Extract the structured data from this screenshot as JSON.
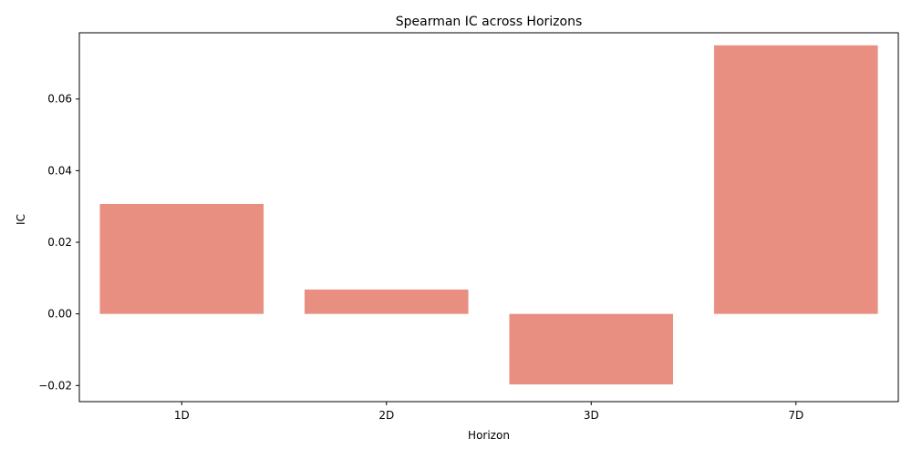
{
  "chart_data": {
    "type": "bar",
    "title": "Spearman IC across Horizons",
    "xlabel": "Horizon",
    "ylabel": "IC",
    "categories": [
      "1D",
      "2D",
      "3D",
      "7D"
    ],
    "values": [
      0.0307,
      0.0068,
      -0.0197,
      0.075
    ],
    "ylim": [
      -0.0245,
      0.0785
    ],
    "yticks": [
      -0.02,
      0.0,
      0.02,
      0.04,
      0.06
    ],
    "ytick_labels": [
      "−0.02",
      "0.00",
      "0.02",
      "0.04",
      "0.06"
    ],
    "bar_color": "#e98f82",
    "grid": false,
    "legend": "none"
  }
}
